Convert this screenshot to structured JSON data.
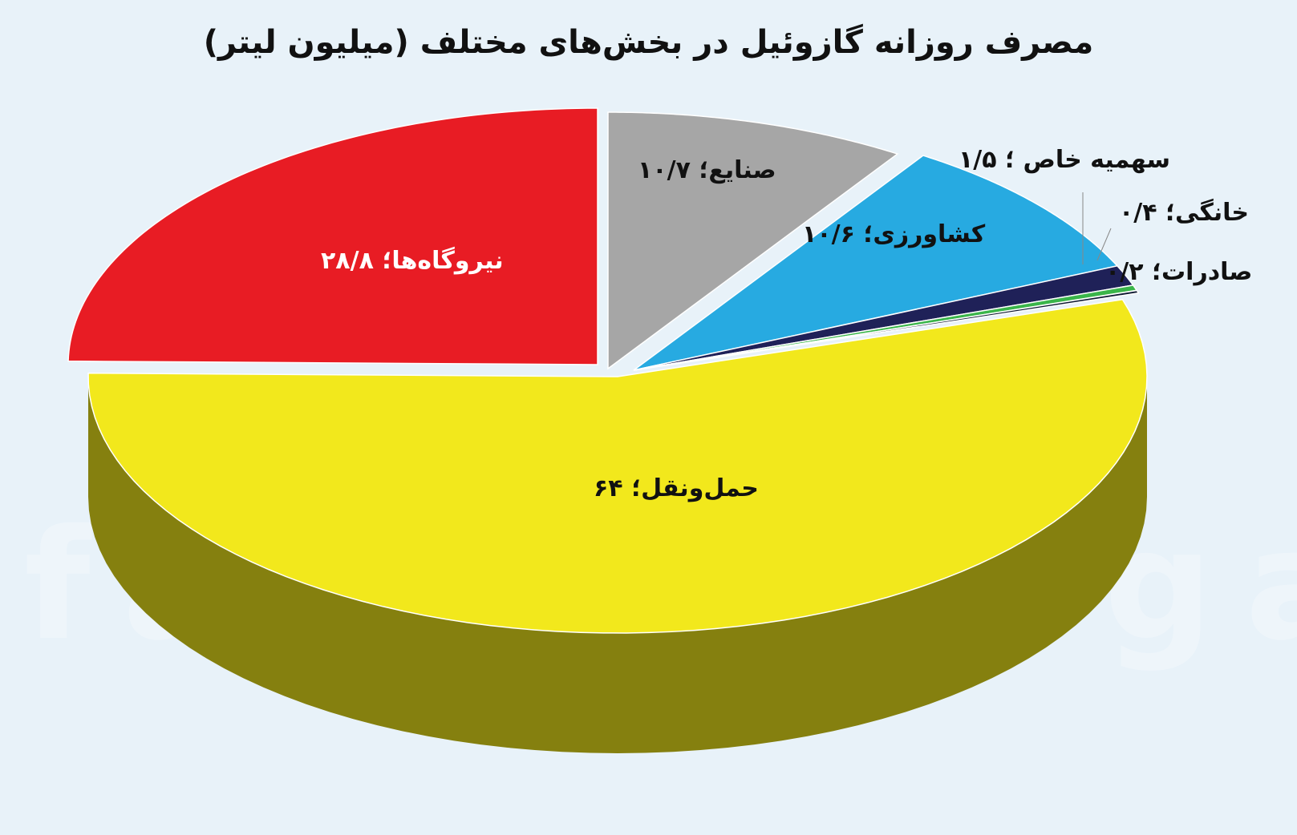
{
  "chart_data": {
    "type": "pie",
    "title": "مصرف روزانه گازوئیل در بخش‌های مختلف (میلیون لیتر)",
    "unit": "میلیون لیتر",
    "three_d": true,
    "slices": [
      {
        "name": "صنایع",
        "value": 10.7,
        "label": "صنایع؛ ۱۰/۷",
        "color": "#a6a6a6"
      },
      {
        "name": "کشاورزی",
        "value": 10.6,
        "label": "کشاورزی؛ ۱۰/۶",
        "color": "#27aae1"
      },
      {
        "name": "سهمیه خاص",
        "value": 1.5,
        "label": "سهمیه خاص ؛ ۱/۵",
        "color": "#1f2158"
      },
      {
        "name": "خانگی",
        "value": 0.4,
        "label": "خانگی؛ ۰/۴",
        "color": "#3ab54a"
      },
      {
        "name": "صادرات",
        "value": 0.2,
        "label": "صادرات؛ ۰/۲",
        "color": "#0f1a33"
      },
      {
        "name": "حمل‌ونقل",
        "value": 64,
        "label": "حمل‌ونقل؛ ۶۴",
        "color": "#f2e81c"
      },
      {
        "name": "نیروگاه‌ها",
        "value": 28.8,
        "label": "نیروگاه‌ها؛ ۲۸/۸",
        "color": "#e81c24"
      }
    ]
  },
  "watermark": "farhikhtegan"
}
